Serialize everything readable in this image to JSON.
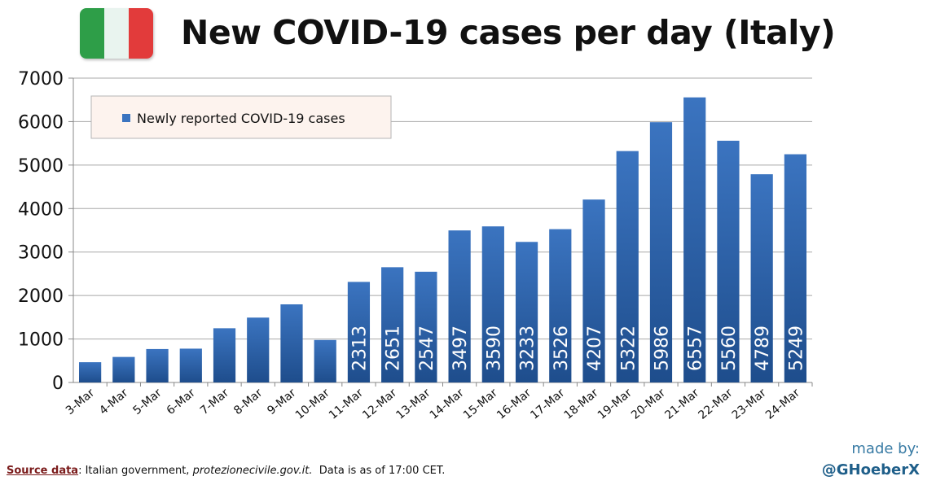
{
  "flag": {
    "colors": [
      "#2e9e48",
      "#e9f4ef",
      "#e23b3b"
    ]
  },
  "title": "New COVID-19 cases per day (Italy)",
  "footer": {
    "source_label": "Source data",
    "source_text": ": Italian government,",
    "source_site": "protezionecivile.gov.it.",
    "as_of": "Data is as of 17:00 CET."
  },
  "credit": {
    "line1": "made by:",
    "line2": "@GHoeberX"
  },
  "chart_data": {
    "type": "bar",
    "categories": [
      "3-Mar",
      "4-Mar",
      "5-Mar",
      "6-Mar",
      "7-Mar",
      "8-Mar",
      "9-Mar",
      "10-Mar",
      "11-Mar",
      "12-Mar",
      "13-Mar",
      "14-Mar",
      "15-Mar",
      "16-Mar",
      "17-Mar",
      "18-Mar",
      "19-Mar",
      "20-Mar",
      "21-Mar",
      "22-Mar",
      "23-Mar",
      "24-Mar"
    ],
    "series": [
      {
        "name": "Newly reported COVID-19 cases",
        "values": [
          466,
          587,
          769,
          778,
          1247,
          1492,
          1797,
          977,
          2313,
          2651,
          2547,
          3497,
          3590,
          3233,
          3526,
          4207,
          5322,
          5986,
          6557,
          5560,
          4789,
          5249
        ],
        "labels": [
          "",
          "",
          "",
          "",
          "",
          "",
          "",
          "",
          "2313",
          "2651",
          "2547",
          "3497",
          "3590",
          "3233",
          "3526",
          "4207",
          "5322",
          "5986",
          "6557",
          "5560",
          "4789",
          "5249"
        ]
      }
    ],
    "yticks": [
      "0",
      "1000",
      "2000",
      "3000",
      "4000",
      "5000",
      "6000",
      "7000"
    ],
    "ylim": [
      0,
      7000
    ],
    "grid": true,
    "legend": "top-left",
    "bar_color": "#3b74c0",
    "bar_color_dark": "#1e4d8c"
  }
}
